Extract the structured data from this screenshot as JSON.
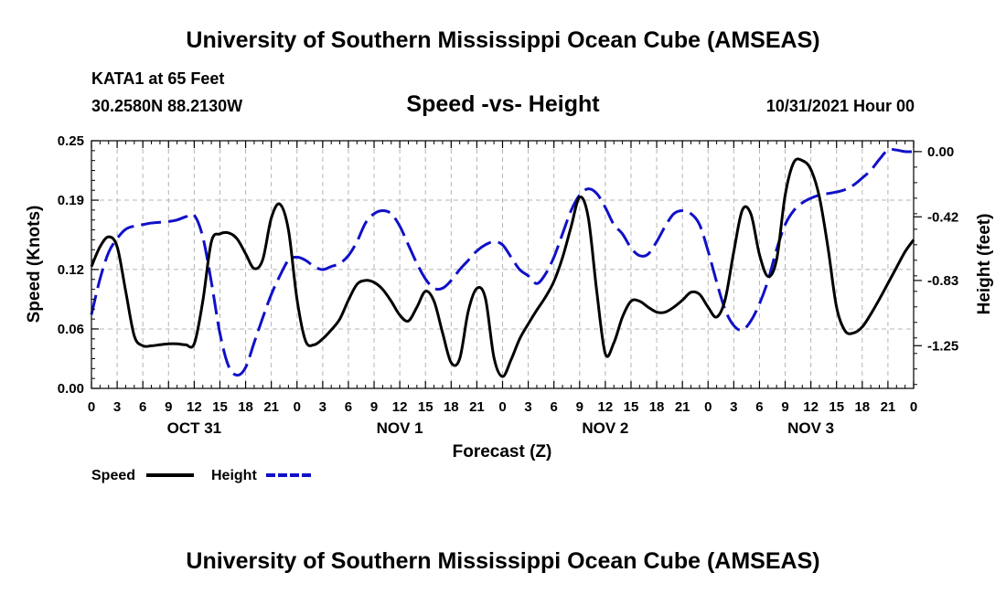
{
  "header": {
    "title": "University of Southern Mississippi Ocean Cube (AMSEAS)",
    "station": "KATA1 at 65 Feet",
    "coords": "30.2580N  88.2130W",
    "date": "10/31/2021 Hour 00"
  },
  "footer": {
    "title": "University of Southern Mississippi Ocean Cube (AMSEAS)"
  },
  "colors": {
    "speed": "#000000",
    "height": "#1010c8",
    "grid": "#b4b4b4"
  },
  "chart_data": {
    "type": "line",
    "title": "Speed -vs- Height",
    "xlabel": "Forecast (Z)",
    "ylabel": "Speed (Knots)",
    "y2label": "Height (feet)",
    "xlim": [
      0,
      96
    ],
    "ylim": [
      0,
      0.25
    ],
    "y2lim": [
      -1.525,
      0.07
    ],
    "x_tick_values": [
      0,
      3,
      6,
      9,
      12,
      15,
      18,
      21,
      24,
      27,
      30,
      33,
      36,
      39,
      42,
      45,
      48,
      51,
      54,
      57,
      60,
      63,
      66,
      69,
      72,
      75,
      78,
      81,
      84,
      87,
      90,
      93,
      96
    ],
    "x_tick_labels": [
      "0",
      "3",
      "6",
      "9",
      "12",
      "15",
      "18",
      "21",
      "0",
      "3",
      "6",
      "9",
      "12",
      "15",
      "18",
      "21",
      "0",
      "3",
      "6",
      "9",
      "12",
      "15",
      "18",
      "21",
      "0",
      "3",
      "6",
      "9",
      "12",
      "15",
      "18",
      "21",
      "0"
    ],
    "day_labels": [
      {
        "x": 12,
        "label": "OCT 31"
      },
      {
        "x": 36,
        "label": "NOV 1"
      },
      {
        "x": 60,
        "label": "NOV 2"
      },
      {
        "x": 84,
        "label": "NOV 3"
      }
    ],
    "y_ticks": [
      0.0,
      0.06,
      0.12,
      0.19,
      0.25
    ],
    "y_tick_labels": [
      "0.00",
      "0.06",
      "0.12",
      "0.19",
      "0.25"
    ],
    "y2_ticks": [
      0.0,
      -0.42,
      -0.83,
      -1.25
    ],
    "y2_tick_labels": [
      "0.00",
      "-0.42",
      "-0.83",
      "-1.25"
    ],
    "legend": [
      {
        "name": "Speed",
        "style": "solid"
      },
      {
        "name": "Height",
        "style": "dashed"
      }
    ],
    "series": [
      {
        "name": "Speed",
        "axis": "left",
        "x": [
          0,
          1,
          2,
          3,
          4,
          5,
          6,
          7,
          8,
          9,
          10,
          11,
          12,
          13,
          14,
          15,
          16,
          17,
          18,
          19,
          20,
          21,
          22,
          23,
          24,
          25,
          26,
          27,
          28,
          29,
          30,
          31,
          32,
          33,
          34,
          35,
          36,
          37,
          38,
          39,
          40,
          41,
          42,
          43,
          44,
          45,
          46,
          47,
          48,
          49,
          50,
          51,
          52,
          53,
          54,
          55,
          56,
          57,
          58,
          59,
          60,
          61,
          62,
          63,
          64,
          65,
          66,
          67,
          68,
          69,
          70,
          71,
          72,
          73,
          74,
          75,
          76,
          77,
          78,
          79,
          80,
          81,
          82,
          83,
          84,
          85,
          86,
          87,
          88,
          89,
          90,
          91,
          92,
          93,
          94,
          95,
          96
        ],
        "values": [
          0.123,
          0.143,
          0.153,
          0.143,
          0.098,
          0.053,
          0.043,
          0.043,
          0.044,
          0.045,
          0.045,
          0.044,
          0.045,
          0.088,
          0.148,
          0.156,
          0.157,
          0.151,
          0.136,
          0.121,
          0.13,
          0.172,
          0.186,
          0.16,
          0.09,
          0.048,
          0.044,
          0.05,
          0.059,
          0.07,
          0.089,
          0.105,
          0.109,
          0.107,
          0.1,
          0.088,
          0.074,
          0.068,
          0.082,
          0.098,
          0.088,
          0.056,
          0.026,
          0.03,
          0.078,
          0.101,
          0.091,
          0.031,
          0.012,
          0.029,
          0.05,
          0.065,
          0.079,
          0.092,
          0.108,
          0.132,
          0.163,
          0.193,
          0.173,
          0.098,
          0.035,
          0.046,
          0.072,
          0.088,
          0.088,
          0.082,
          0.077,
          0.077,
          0.082,
          0.089,
          0.097,
          0.095,
          0.082,
          0.072,
          0.09,
          0.138,
          0.18,
          0.176,
          0.135,
          0.113,
          0.13,
          0.195,
          0.228,
          0.23,
          0.221,
          0.193,
          0.142,
          0.082,
          0.058,
          0.056,
          0.062,
          0.075,
          0.09,
          0.106,
          0.122,
          0.138,
          0.15
        ]
      },
      {
        "name": "Height",
        "axis": "right",
        "x": [
          0,
          1,
          2,
          3,
          4,
          5,
          6,
          7,
          8,
          9,
          10,
          11,
          12,
          13,
          14,
          15,
          16,
          17,
          18,
          19,
          20,
          21,
          22,
          23,
          24,
          25,
          26,
          27,
          28,
          29,
          30,
          31,
          32,
          33,
          34,
          35,
          36,
          37,
          38,
          39,
          40,
          41,
          42,
          43,
          44,
          45,
          46,
          47,
          48,
          49,
          50,
          51,
          52,
          53,
          54,
          55,
          56,
          57,
          58,
          59,
          60,
          61,
          62,
          63,
          64,
          65,
          66,
          67,
          68,
          69,
          70,
          71,
          72,
          73,
          74,
          75,
          76,
          77,
          78,
          79,
          80,
          81,
          82,
          83,
          84,
          85,
          86,
          87,
          88,
          89,
          90,
          91,
          92,
          93,
          94,
          95,
          96
        ],
        "values": [
          -1.05,
          -0.82,
          -0.65,
          -0.56,
          -0.5,
          -0.48,
          -0.47,
          -0.46,
          -0.455,
          -0.45,
          -0.44,
          -0.42,
          -0.41,
          -0.55,
          -0.84,
          -1.17,
          -1.38,
          -1.44,
          -1.39,
          -1.23,
          -1.07,
          -0.92,
          -0.8,
          -0.7,
          -0.68,
          -0.7,
          -0.74,
          -0.76,
          -0.74,
          -0.72,
          -0.67,
          -0.58,
          -0.46,
          -0.4,
          -0.38,
          -0.4,
          -0.48,
          -0.6,
          -0.72,
          -0.82,
          -0.88,
          -0.88,
          -0.83,
          -0.76,
          -0.7,
          -0.64,
          -0.6,
          -0.58,
          -0.6,
          -0.68,
          -0.76,
          -0.8,
          -0.85,
          -0.79,
          -0.68,
          -0.53,
          -0.38,
          -0.28,
          -0.24,
          -0.27,
          -0.36,
          -0.47,
          -0.53,
          -0.62,
          -0.67,
          -0.66,
          -0.58,
          -0.48,
          -0.4,
          -0.38,
          -0.4,
          -0.47,
          -0.64,
          -0.84,
          -1.02,
          -1.12,
          -1.15,
          -1.09,
          -0.98,
          -0.83,
          -0.63,
          -0.47,
          -0.38,
          -0.33,
          -0.3,
          -0.28,
          -0.27,
          -0.26,
          -0.245,
          -0.215,
          -0.17,
          -0.12,
          -0.05,
          0.01,
          0.01,
          0.0,
          0.0
        ]
      }
    ]
  }
}
